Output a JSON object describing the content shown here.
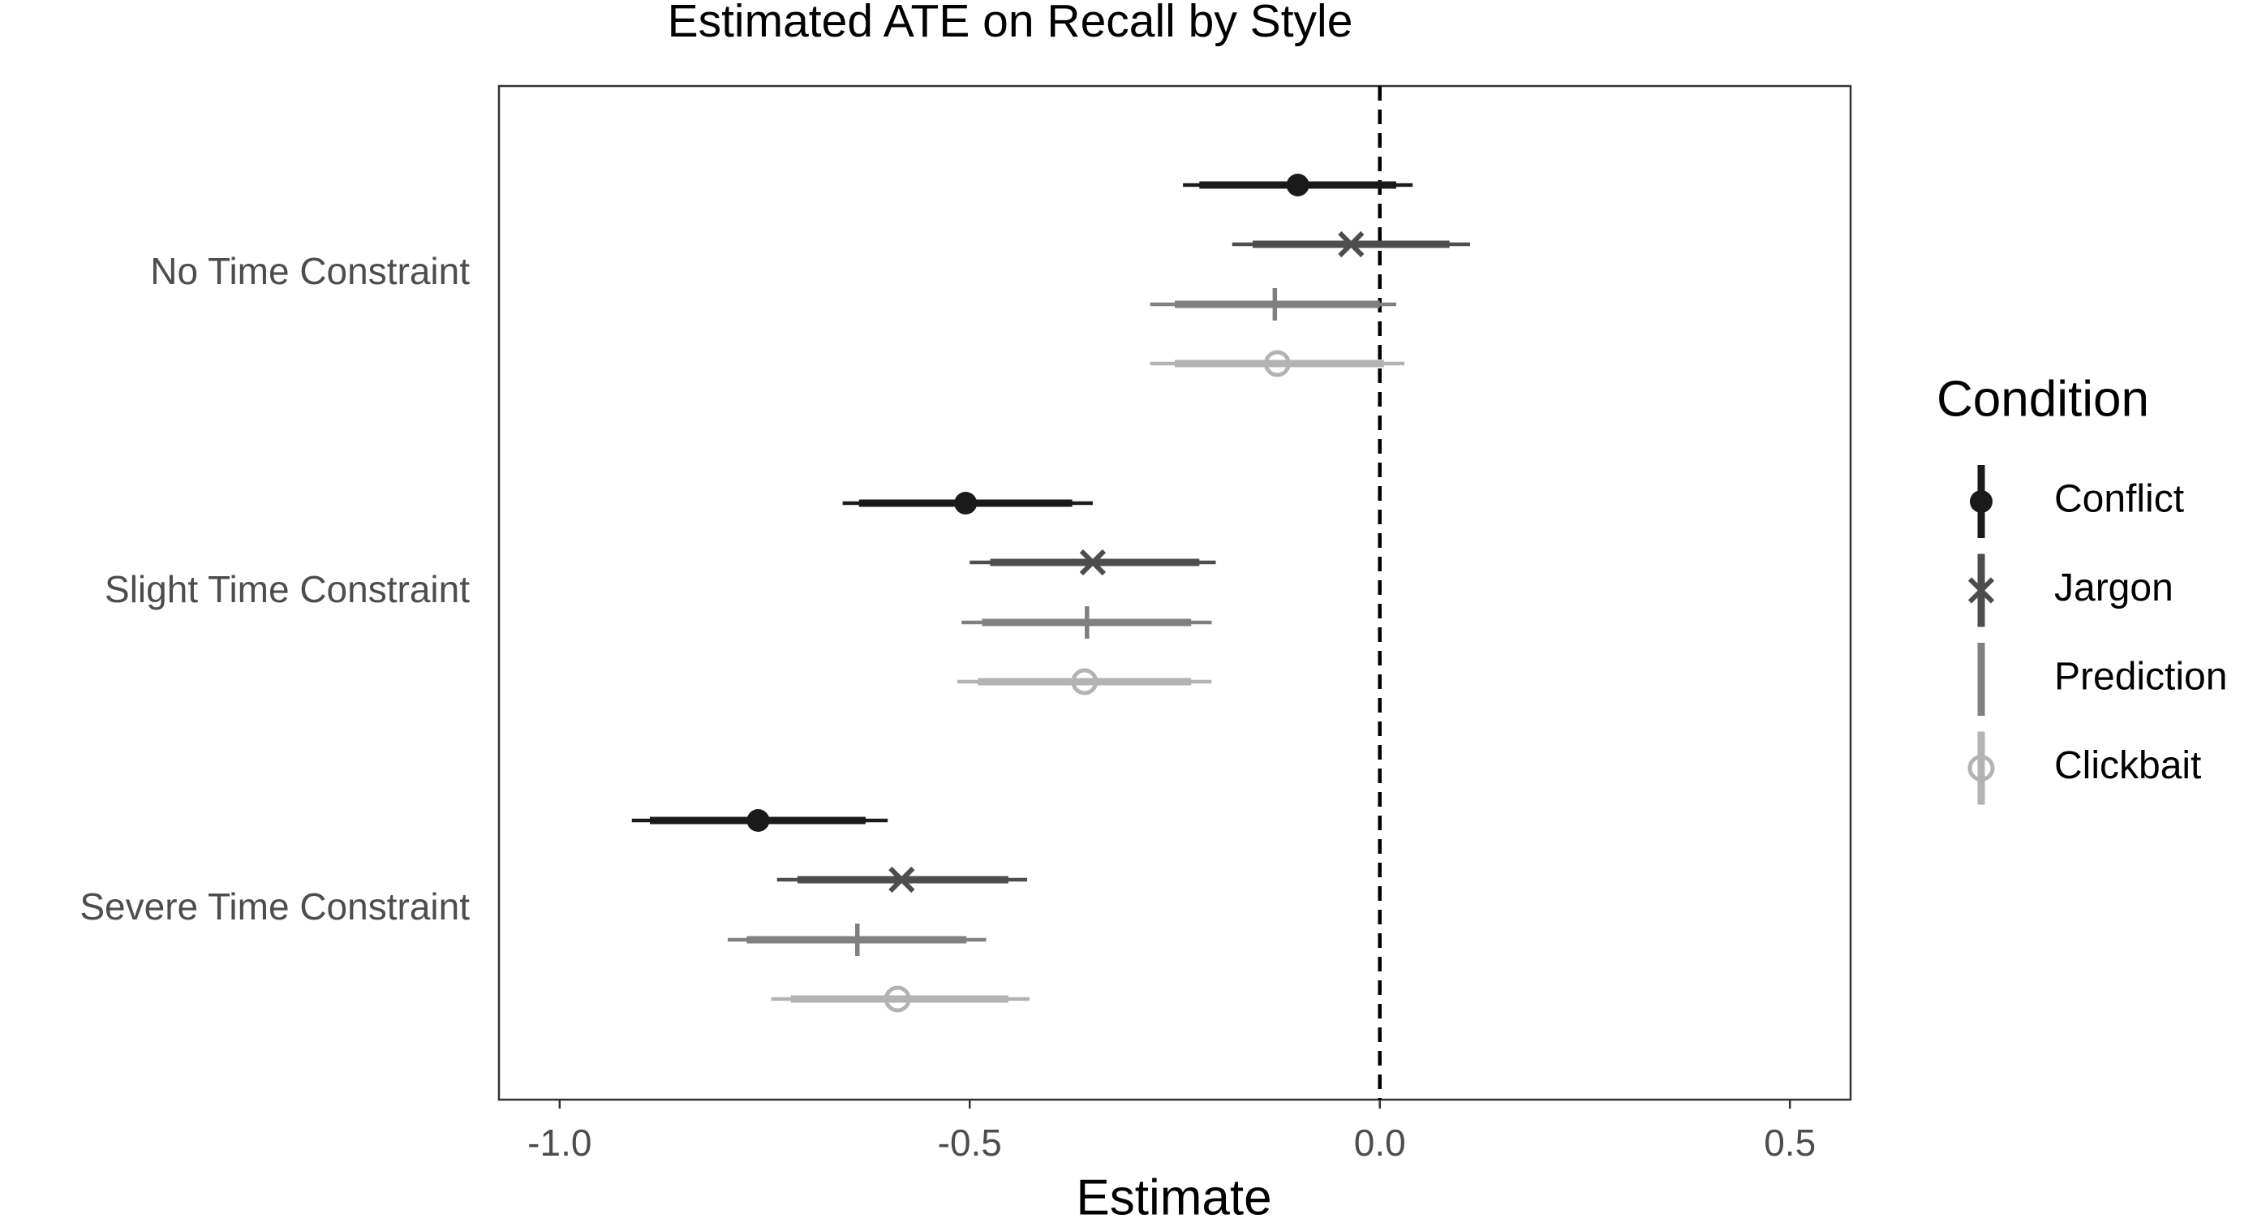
{
  "chart_data": {
    "type": "interval",
    "title": "Estimated ATE on Recall by Style",
    "x_label": "Estimate",
    "legend_title": "Condition",
    "legend_position": "right",
    "categories": [
      "No Time Constraint",
      "Slight Time Constraint",
      "Severe Time Constraint"
    ],
    "xlim": [
      -1.074,
      0.574
    ],
    "xticks": [
      {
        "value": -1,
        "label": "-1.0"
      },
      -0.5,
      {
        "value": 0,
        "label": "0.0"
      },
      0.5
    ],
    "reference_line": 0,
    "series": [
      {
        "name": "Conflict",
        "color": "#1a1a1a",
        "marker": "filled-circle",
        "values": [
          -0.1,
          -0.505,
          -0.758
        ],
        "inner_low": [
          -0.22,
          -0.635,
          -0.89
        ],
        "inner_high": [
          0.02,
          -0.375,
          -0.627
        ],
        "outer_low": [
          -0.24,
          -0.655,
          -0.912
        ],
        "outer_high": [
          0.04,
          -0.35,
          -0.6
        ]
      },
      {
        "name": "Jargon",
        "color": "#4d4d4d",
        "marker": "cross",
        "values": [
          -0.035,
          -0.35,
          -0.583
        ],
        "inner_low": [
          -0.155,
          -0.475,
          -0.71
        ],
        "inner_high": [
          0.085,
          -0.22,
          -0.453
        ],
        "outer_low": [
          -0.18,
          -0.5,
          -0.735
        ],
        "outer_high": [
          0.11,
          -0.2,
          -0.43
        ]
      },
      {
        "name": "Prediction",
        "color": "#808080",
        "marker": "plus",
        "values": [
          -0.128,
          -0.357,
          -0.637
        ],
        "inner_low": [
          -0.25,
          -0.485,
          -0.772
        ],
        "inner_high": [
          0.0,
          -0.23,
          -0.504
        ],
        "outer_low": [
          -0.28,
          -0.51,
          -0.795
        ],
        "outer_high": [
          0.02,
          -0.205,
          -0.48
        ]
      },
      {
        "name": "Clickbait",
        "color": "#b3b3b3",
        "marker": "open-circle",
        "values": [
          -0.125,
          -0.36,
          -0.588
        ],
        "inner_low": [
          -0.25,
          -0.49,
          -0.718
        ],
        "inner_high": [
          0.005,
          -0.23,
          -0.453
        ],
        "outer_low": [
          -0.28,
          -0.515,
          -0.742
        ],
        "outer_high": [
          0.03,
          -0.205,
          -0.427
        ]
      }
    ]
  }
}
